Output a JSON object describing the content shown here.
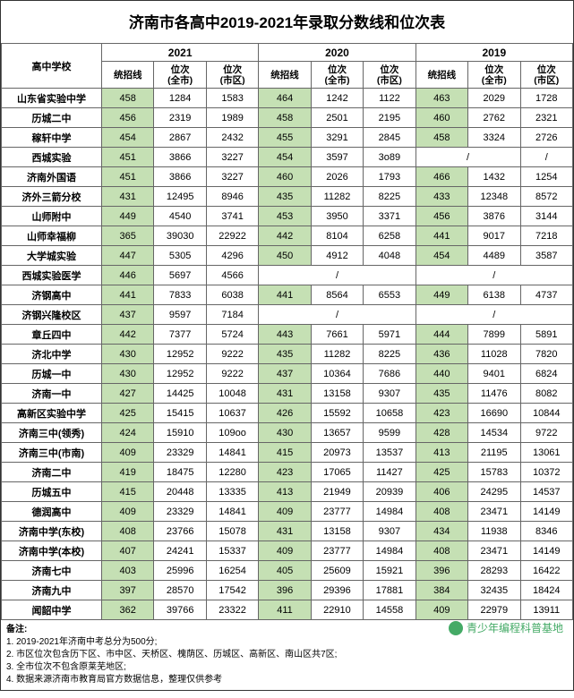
{
  "title": "济南市各高中2019-2021年录取分数线和位次表",
  "header": {
    "school": "高中学校",
    "years": [
      "2021",
      "2020",
      "2019"
    ],
    "cols": [
      "统招线",
      "位次\n(全市)",
      "位次\n(市区)"
    ]
  },
  "colors": {
    "score_bg": "#c5e0b4",
    "border": "#666666",
    "text": "#000000"
  },
  "rows": [
    {
      "school": "山东省实验中学",
      "d": [
        "458",
        "1284",
        "1583",
        "464",
        "1242",
        "1122",
        "463",
        "2029",
        "1728"
      ]
    },
    {
      "school": "历城二中",
      "d": [
        "456",
        "2319",
        "1989",
        "458",
        "2501",
        "2195",
        "460",
        "2762",
        "2321"
      ]
    },
    {
      "school": "稼轩中学",
      "d": [
        "454",
        "2867",
        "2432",
        "455",
        "3291",
        "2845",
        "458",
        "3324",
        "2726"
      ]
    },
    {
      "school": "西城实验",
      "d": [
        "451",
        "3866",
        "3227",
        "454",
        "3597",
        "3o89",
        "/",
        "",
        "/"
      ],
      "slash": [
        6,
        8
      ]
    },
    {
      "school": "济南外国语",
      "d": [
        "451",
        "3866",
        "3227",
        "460",
        "2026",
        "1793",
        "466",
        "1432",
        "1254"
      ]
    },
    {
      "school": "济外三箭分校",
      "d": [
        "431",
        "12495",
        "8946",
        "435",
        "11282",
        "8225",
        "433",
        "12348",
        "8572"
      ]
    },
    {
      "school": "山师附中",
      "d": [
        "449",
        "4540",
        "3741",
        "453",
        "3950",
        "3371",
        "456",
        "3876",
        "3144"
      ]
    },
    {
      "school": "山师幸福柳",
      "d": [
        "365",
        "39030",
        "22922",
        "442",
        "8104",
        "6258",
        "441",
        "9017",
        "7218"
      ]
    },
    {
      "school": "大学城实验",
      "d": [
        "447",
        "5305",
        "4296",
        "450",
        "4912",
        "4048",
        "454",
        "4489",
        "3587"
      ]
    },
    {
      "school": "西城实验医学",
      "d": [
        "446",
        "5697",
        "4566",
        "/",
        "",
        "/",
        "/",
        "",
        "/"
      ],
      "slash": [
        3,
        5,
        6,
        8
      ],
      "noscorebg": [
        3,
        6
      ]
    },
    {
      "school": "济钢高中",
      "d": [
        "441",
        "7833",
        "6038",
        "441",
        "8564",
        "6553",
        "449",
        "6138",
        "4737"
      ]
    },
    {
      "school": "济钢兴隆校区",
      "d": [
        "437",
        "9597",
        "7184",
        "/",
        "",
        "/",
        "/",
        "",
        "/"
      ],
      "slash": [
        3,
        5,
        6,
        8
      ],
      "noscorebg": [
        3,
        6
      ]
    },
    {
      "school": "章丘四中",
      "d": [
        "442",
        "7377",
        "5724",
        "443",
        "7661",
        "5971",
        "444",
        "7899",
        "5891"
      ]
    },
    {
      "school": "济北中学",
      "d": [
        "430",
        "12952",
        "9222",
        "435",
        "11282",
        "8225",
        "436",
        "11028",
        "7820"
      ]
    },
    {
      "school": "历城一中",
      "d": [
        "430",
        "12952",
        "9222",
        "437",
        "10364",
        "7686",
        "440",
        "9401",
        "6824"
      ]
    },
    {
      "school": "济南一中",
      "d": [
        "427",
        "14425",
        "10048",
        "431",
        "13158",
        "9307",
        "435",
        "11476",
        "8082"
      ]
    },
    {
      "school": "高新区实验中学",
      "d": [
        "425",
        "15415",
        "10637",
        "426",
        "15592",
        "10658",
        "423",
        "16690",
        "10844"
      ]
    },
    {
      "school": "济南三中(领秀)",
      "d": [
        "424",
        "15910",
        "109oo",
        "430",
        "13657",
        "9599",
        "428",
        "14534",
        "9722"
      ]
    },
    {
      "school": "济南三中(市南)",
      "d": [
        "409",
        "23329",
        "14841",
        "415",
        "20973",
        "13537",
        "413",
        "21195",
        "13061"
      ]
    },
    {
      "school": "济南二中",
      "d": [
        "419",
        "18475",
        "12280",
        "423",
        "17065",
        "11427",
        "425",
        "15783",
        "10372"
      ]
    },
    {
      "school": "历城五中",
      "d": [
        "415",
        "20448",
        "13335",
        "413",
        "21949",
        "20939",
        "406",
        "24295",
        "14537"
      ]
    },
    {
      "school": "德润高中",
      "d": [
        "409",
        "23329",
        "14841",
        "409",
        "23777",
        "14984",
        "408",
        "23471",
        "14149"
      ]
    },
    {
      "school": "济南中学(东校)",
      "d": [
        "408",
        "23766",
        "15078",
        "431",
        "13158",
        "9307",
        "434",
        "11938",
        "8346"
      ]
    },
    {
      "school": "济南中学(本校)",
      "d": [
        "407",
        "24241",
        "15337",
        "409",
        "23777",
        "14984",
        "408",
        "23471",
        "14149"
      ]
    },
    {
      "school": "济南七中",
      "d": [
        "403",
        "25996",
        "16254",
        "405",
        "25609",
        "15921",
        "396",
        "28293",
        "16422"
      ]
    },
    {
      "school": "济南九中",
      "d": [
        "397",
        "28570",
        "17542",
        "396",
        "29396",
        "17881",
        "384",
        "32435",
        "18424"
      ]
    },
    {
      "school": "闻韶中学",
      "d": [
        "362",
        "39766",
        "23322",
        "411",
        "22910",
        "14558",
        "409",
        "22979",
        "13911"
      ]
    }
  ],
  "notes": {
    "title": "备注:",
    "items": [
      "1. 2019-2021年济南中考总分为500分;",
      "2. 市区位次包含历下区、市中区、天桥区、槐荫区、历城区、高新区、南山区共7区;",
      "3. 全市位次不包含原莱芜地区;",
      "4. 数据来源济南市教育局官方数据信息，整理仅供参考"
    ]
  },
  "watermark": "青少年编程科普基地"
}
